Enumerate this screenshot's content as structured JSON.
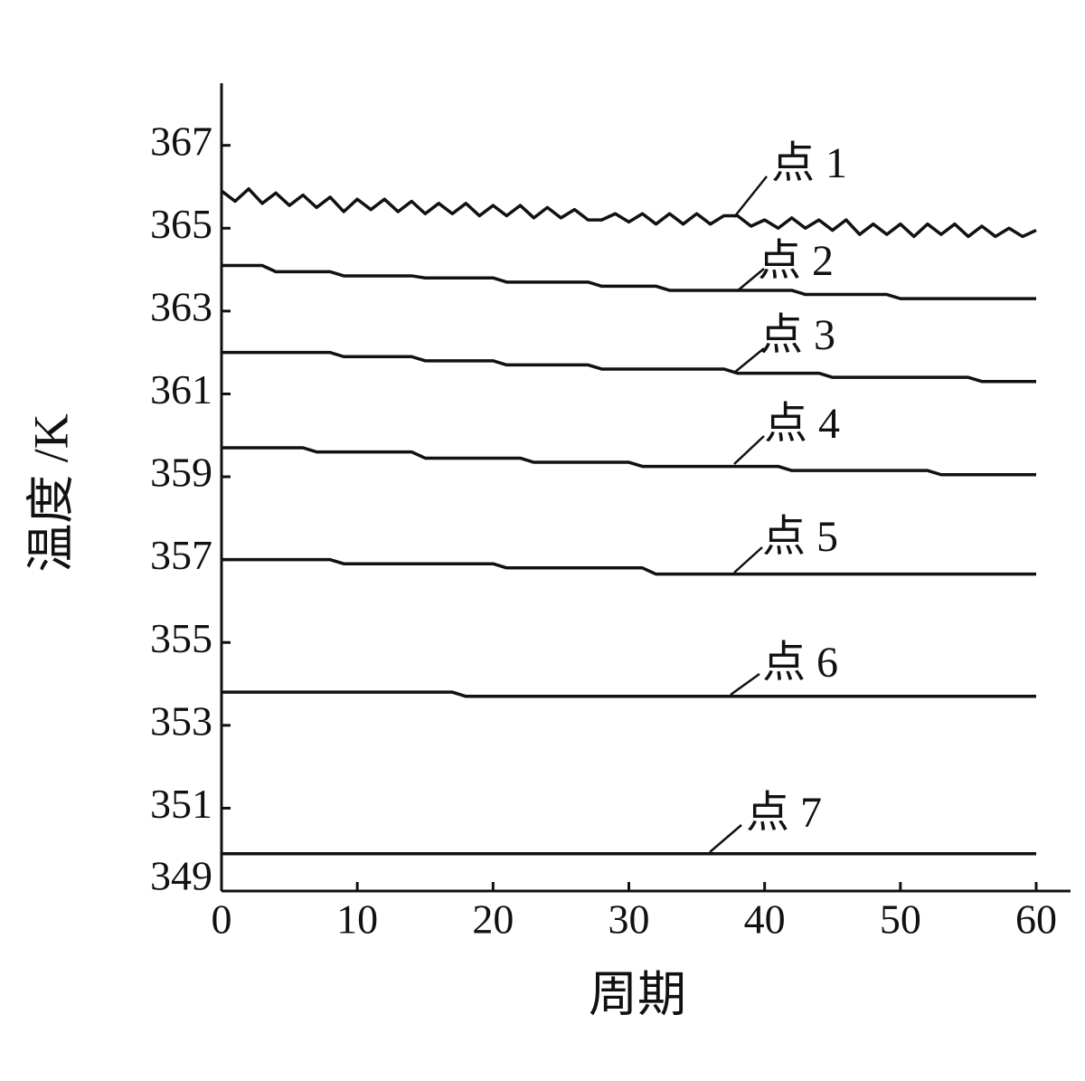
{
  "chart_data": {
    "type": "line",
    "x_label": "周期",
    "y_label": "温度 /K",
    "x": [
      0,
      1,
      2,
      3,
      4,
      5,
      6,
      7,
      8,
      9,
      10,
      11,
      12,
      13,
      14,
      15,
      16,
      17,
      18,
      19,
      20,
      21,
      22,
      23,
      24,
      25,
      26,
      27,
      28,
      29,
      30,
      31,
      32,
      33,
      34,
      35,
      36,
      37,
      38,
      39,
      40,
      41,
      42,
      43,
      44,
      45,
      46,
      47,
      48,
      49,
      50,
      51,
      52,
      53,
      54,
      55,
      56,
      57,
      58,
      59,
      60
    ],
    "xlim": [
      0,
      60
    ],
    "xticks": [
      0,
      10,
      20,
      30,
      40,
      50,
      60
    ],
    "ylim": [
      349,
      368.5
    ],
    "yticks": [
      349,
      351,
      353,
      355,
      357,
      359,
      361,
      363,
      365,
      367
    ],
    "series": [
      {
        "name": "点 1",
        "color": "#111111",
        "values": [
          365.9,
          365.65,
          365.95,
          365.6,
          365.85,
          365.55,
          365.8,
          365.5,
          365.75,
          365.4,
          365.7,
          365.45,
          365.7,
          365.4,
          365.65,
          365.35,
          365.6,
          365.35,
          365.6,
          365.3,
          365.55,
          365.3,
          365.55,
          365.25,
          365.5,
          365.25,
          365.45,
          365.2,
          365.2,
          365.35,
          365.15,
          365.35,
          365.1,
          365.35,
          365.1,
          365.35,
          365.1,
          365.3,
          365.3,
          365.05,
          365.2,
          365.0,
          365.25,
          365.0,
          365.2,
          364.95,
          365.2,
          364.85,
          365.1,
          364.85,
          365.1,
          364.8,
          365.1,
          364.85,
          365.1,
          364.8,
          365.05,
          364.8,
          365.0,
          364.8,
          364.95
        ]
      },
      {
        "name": "点 2",
        "color": "#111111",
        "values": [
          364.1,
          364.1,
          364.1,
          364.1,
          363.95,
          363.95,
          363.95,
          363.95,
          363.95,
          363.85,
          363.85,
          363.85,
          363.85,
          363.85,
          363.85,
          363.8,
          363.8,
          363.8,
          363.8,
          363.8,
          363.8,
          363.7,
          363.7,
          363.7,
          363.7,
          363.7,
          363.7,
          363.7,
          363.6,
          363.6,
          363.6,
          363.6,
          363.6,
          363.5,
          363.5,
          363.5,
          363.5,
          363.5,
          363.5,
          363.5,
          363.5,
          363.5,
          363.5,
          363.4,
          363.4,
          363.4,
          363.4,
          363.4,
          363.4,
          363.4,
          363.3,
          363.3,
          363.3,
          363.3,
          363.3,
          363.3,
          363.3,
          363.3,
          363.3,
          363.3,
          363.3
        ]
      },
      {
        "name": "点 3",
        "color": "#111111",
        "values": [
          362,
          362,
          362,
          362,
          362,
          362,
          362,
          362,
          362,
          361.9,
          361.9,
          361.9,
          361.9,
          361.9,
          361.9,
          361.8,
          361.8,
          361.8,
          361.8,
          361.8,
          361.8,
          361.7,
          361.7,
          361.7,
          361.7,
          361.7,
          361.7,
          361.7,
          361.6,
          361.6,
          361.6,
          361.6,
          361.6,
          361.6,
          361.6,
          361.6,
          361.6,
          361.6,
          361.5,
          361.5,
          361.5,
          361.5,
          361.5,
          361.5,
          361.5,
          361.4,
          361.4,
          361.4,
          361.4,
          361.4,
          361.4,
          361.4,
          361.4,
          361.4,
          361.4,
          361.4,
          361.3,
          361.3,
          361.3,
          361.3,
          361.3
        ]
      },
      {
        "name": "点 4",
        "color": "#111111",
        "values": [
          359.7,
          359.7,
          359.7,
          359.7,
          359.7,
          359.7,
          359.7,
          359.6,
          359.6,
          359.6,
          359.6,
          359.6,
          359.6,
          359.6,
          359.6,
          359.45,
          359.45,
          359.45,
          359.45,
          359.45,
          359.45,
          359.45,
          359.45,
          359.35,
          359.35,
          359.35,
          359.35,
          359.35,
          359.35,
          359.35,
          359.35,
          359.25,
          359.25,
          359.25,
          359.25,
          359.25,
          359.25,
          359.25,
          359.25,
          359.25,
          359.25,
          359.25,
          359.15,
          359.15,
          359.15,
          359.15,
          359.15,
          359.15,
          359.15,
          359.15,
          359.15,
          359.15,
          359.15,
          359.05,
          359.05,
          359.05,
          359.05,
          359.05,
          359.05,
          359.05,
          359.05
        ]
      },
      {
        "name": "点 5",
        "color": "#111111",
        "values": [
          357,
          357,
          357,
          357,
          357,
          357,
          357,
          357,
          357,
          356.9,
          356.9,
          356.9,
          356.9,
          356.9,
          356.9,
          356.9,
          356.9,
          356.9,
          356.9,
          356.9,
          356.9,
          356.8,
          356.8,
          356.8,
          356.8,
          356.8,
          356.8,
          356.8,
          356.8,
          356.8,
          356.8,
          356.8,
          356.65,
          356.65,
          356.65,
          356.65,
          356.65,
          356.65,
          356.65,
          356.65,
          356.65,
          356.65,
          356.65,
          356.65,
          356.65,
          356.65,
          356.65,
          356.65,
          356.65,
          356.65,
          356.65,
          356.65,
          356.65,
          356.65,
          356.65,
          356.65,
          356.65,
          356.65,
          356.65,
          356.65,
          356.65
        ]
      },
      {
        "name": "点 6",
        "color": "#111111",
        "values": [
          353.8,
          353.8,
          353.8,
          353.8,
          353.8,
          353.8,
          353.8,
          353.8,
          353.8,
          353.8,
          353.8,
          353.8,
          353.8,
          353.8,
          353.8,
          353.8,
          353.8,
          353.8,
          353.7,
          353.7,
          353.7,
          353.7,
          353.7,
          353.7,
          353.7,
          353.7,
          353.7,
          353.7,
          353.7,
          353.7,
          353.7,
          353.7,
          353.7,
          353.7,
          353.7,
          353.7,
          353.7,
          353.7,
          353.7,
          353.7,
          353.7,
          353.7,
          353.7,
          353.7,
          353.7,
          353.7,
          353.7,
          353.7,
          353.7,
          353.7,
          353.7,
          353.7,
          353.7,
          353.7,
          353.7,
          353.7,
          353.7,
          353.7,
          353.7,
          353.7,
          353.7
        ]
      },
      {
        "name": "点 7",
        "color": "#111111",
        "values": [
          349.9,
          349.9,
          349.9,
          349.9,
          349.9,
          349.9,
          349.9,
          349.9,
          349.9,
          349.9,
          349.9,
          349.9,
          349.9,
          349.9,
          349.9,
          349.9,
          349.9,
          349.9,
          349.9,
          349.9,
          349.9,
          349.9,
          349.9,
          349.9,
          349.9,
          349.9,
          349.9,
          349.9,
          349.9,
          349.9,
          349.9,
          349.9,
          349.9,
          349.9,
          349.9,
          349.9,
          349.9,
          349.9,
          349.9,
          349.9,
          349.9,
          349.9,
          349.9,
          349.9,
          349.9,
          349.9,
          349.9,
          349.9,
          349.9,
          349.9,
          349.9,
          349.9,
          349.9,
          349.9,
          349.9,
          349.9,
          349.9,
          349.9,
          349.9,
          349.9,
          349.9
        ]
      }
    ]
  }
}
